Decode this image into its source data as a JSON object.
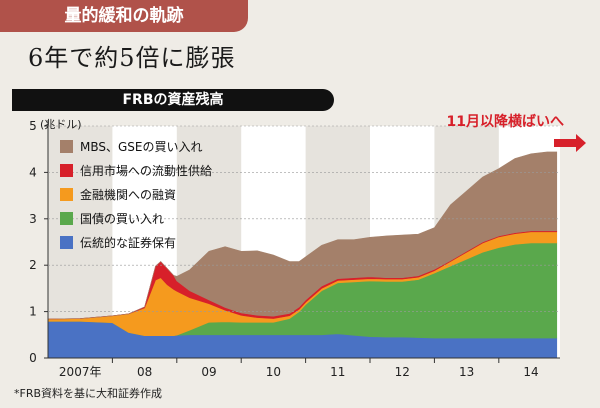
{
  "header": {
    "tab_label": "量的緩和の軌跡",
    "headline": "6年で約5倍に膨張",
    "chart_title": "FRBの資産残高"
  },
  "annotation": {
    "text": "11月以降横ばいへ",
    "color": "#d7202a"
  },
  "source": "*FRB資料を基に大和証券作成",
  "chart_data": {
    "type": "area",
    "stacked": true,
    "title": "FRBの資産残高",
    "ylabel": "(兆ドル)",
    "ylim": [
      0,
      5
    ],
    "yticks": [
      "0",
      "1",
      "2",
      "3",
      "4",
      "5"
    ],
    "xlim": [
      2007.0,
      2014.95
    ],
    "xticks": [
      {
        "x": 2007.5,
        "label": "2007年"
      },
      {
        "x": 2008.5,
        "label": "08"
      },
      {
        "x": 2009.5,
        "label": "09"
      },
      {
        "x": 2010.5,
        "label": "10"
      },
      {
        "x": 2011.5,
        "label": "11"
      },
      {
        "x": 2012.5,
        "label": "12"
      },
      {
        "x": 2013.5,
        "label": "13"
      },
      {
        "x": 2014.5,
        "label": "14"
      }
    ],
    "x": [
      2007.0,
      2007.5,
      2008.0,
      2008.25,
      2008.5,
      2008.67,
      2008.75,
      2008.85,
      2008.95,
      2009.0,
      2009.2,
      2009.5,
      2009.75,
      2010.0,
      2010.25,
      2010.5,
      2010.75,
      2010.9,
      2011.0,
      2011.25,
      2011.5,
      2011.75,
      2012.0,
      2012.25,
      2012.5,
      2012.75,
      2013.0,
      2013.25,
      2013.5,
      2013.75,
      2014.0,
      2014.25,
      2014.5,
      2014.75,
      2014.9
    ],
    "series": [
      {
        "name": "伝統的な証券保有",
        "color": "#4a72c4",
        "values": [
          0.79,
          0.79,
          0.76,
          0.55,
          0.48,
          0.48,
          0.48,
          0.48,
          0.48,
          0.49,
          0.5,
          0.5,
          0.5,
          0.5,
          0.5,
          0.5,
          0.5,
          0.5,
          0.5,
          0.5,
          0.52,
          0.49,
          0.46,
          0.45,
          0.45,
          0.44,
          0.43,
          0.43,
          0.43,
          0.43,
          0.43,
          0.43,
          0.43,
          0.43,
          0.43
        ]
      },
      {
        "name": "国債の買い入れ",
        "color": "#5aa84c",
        "values": [
          0,
          0,
          0,
          0,
          0,
          0,
          0,
          0,
          0,
          0,
          0.1,
          0.27,
          0.28,
          0.27,
          0.27,
          0.27,
          0.35,
          0.5,
          0.65,
          0.95,
          1.1,
          1.15,
          1.2,
          1.2,
          1.2,
          1.25,
          1.4,
          1.55,
          1.7,
          1.85,
          1.95,
          2.02,
          2.05,
          2.05,
          2.05
        ]
      },
      {
        "name": "金融機関への融資",
        "color": "#f59a1e",
        "values": [
          0.05,
          0.06,
          0.15,
          0.4,
          0.6,
          1.2,
          1.25,
          1.1,
          1.0,
          0.95,
          0.7,
          0.4,
          0.25,
          0.15,
          0.1,
          0.08,
          0.06,
          0.05,
          0.05,
          0.05,
          0.05,
          0.05,
          0.05,
          0.05,
          0.05,
          0.05,
          0.05,
          0.1,
          0.15,
          0.2,
          0.23,
          0.23,
          0.24,
          0.24,
          0.24
        ]
      },
      {
        "name": "信用市場への流動性供給",
        "color": "#d7202a",
        "values": [
          0,
          0,
          0,
          0,
          0.02,
          0.3,
          0.35,
          0.35,
          0.3,
          0.22,
          0.15,
          0.08,
          0.06,
          0.05,
          0.05,
          0.05,
          0.05,
          0.05,
          0.05,
          0.05,
          0.04,
          0.04,
          0.04,
          0.03,
          0.03,
          0.03,
          0.03,
          0.02,
          0.02,
          0.02,
          0.02,
          0.02,
          0.02,
          0.02,
          0.02
        ]
      },
      {
        "name": "MBS、GSEの買い入れ",
        "color": "#a4806a",
        "values": [
          0,
          0,
          0,
          0,
          0,
          0,
          0,
          0,
          0,
          0.1,
          0.45,
          1.05,
          1.31,
          1.33,
          1.39,
          1.32,
          1.12,
          0.98,
          0.93,
          0.88,
          0.84,
          0.82,
          0.85,
          0.9,
          0.92,
          0.9,
          0.9,
          1.2,
          1.3,
          1.4,
          1.45,
          1.6,
          1.66,
          1.7,
          1.7
        ]
      }
    ],
    "legend_order": [
      "MBS、GSEの買い入れ",
      "信用市場への流動性供給",
      "金融機関への融資",
      "国債の買い入れ",
      "伝統的な証券保有"
    ],
    "legend_position": "top-left"
  }
}
